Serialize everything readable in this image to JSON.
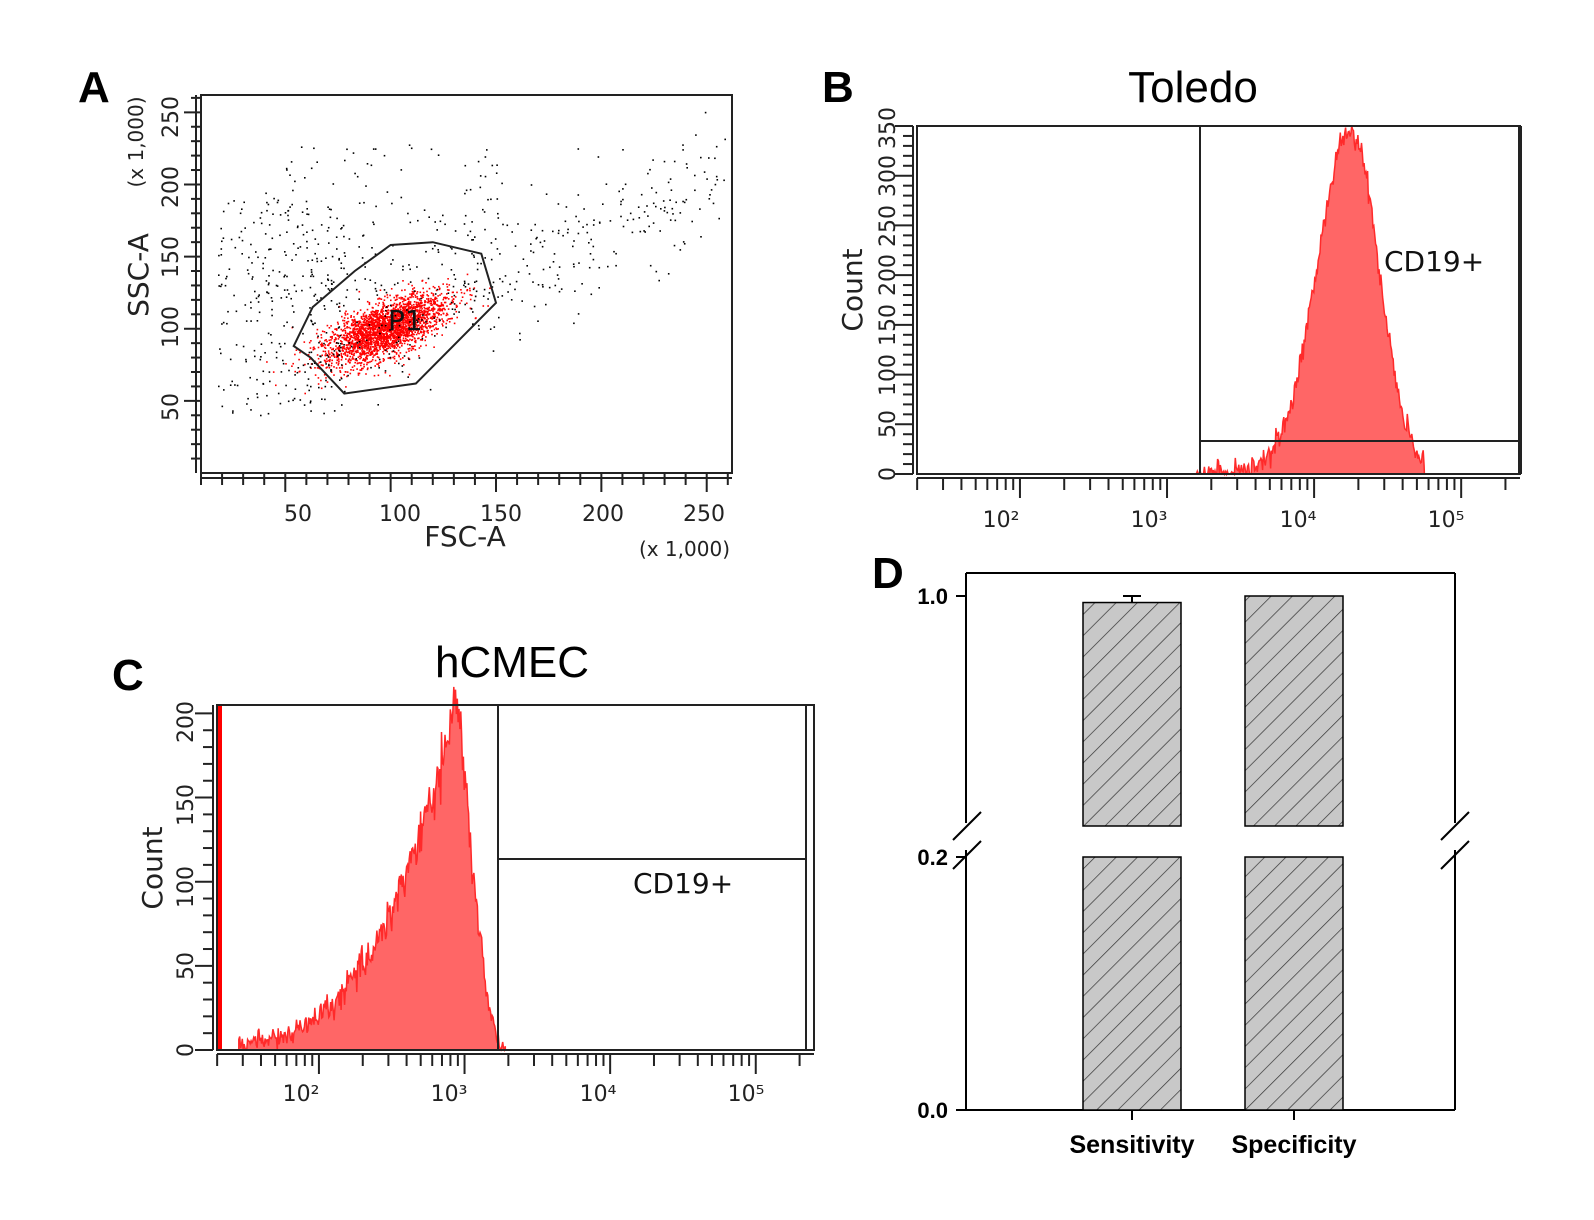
{
  "panel_labels": [
    "A",
    "B",
    "C",
    "D"
  ],
  "chart_data": [
    {
      "panel": "A",
      "type": "scatter",
      "title": "",
      "xlabel": "FSC-A",
      "ylabel": "SSC-A",
      "x_scale_note": "(x 1,000)",
      "y_scale_note": "(x 1,000)",
      "xticks": [
        "50",
        "100",
        "150",
        "200",
        "250"
      ],
      "yticks": [
        "50",
        "100",
        "150",
        "200",
        "250"
      ],
      "xlim": [
        10,
        262
      ],
      "ylim": [
        0,
        262
      ],
      "gate": {
        "label": "P1",
        "polygon": [
          [
            62,
            80
          ],
          [
            78,
            55
          ],
          [
            112,
            62
          ],
          [
            150,
            118
          ],
          [
            143,
            152
          ],
          [
            120,
            160
          ],
          [
            100,
            158
          ],
          [
            83,
            140
          ],
          [
            63,
            115
          ],
          [
            54,
            88
          ]
        ]
      },
      "populations": [
        {
          "name": "P1 gated",
          "color": "#ff0000",
          "center": [
            97,
            100
          ],
          "count": 2600
        },
        {
          "name": "ungated",
          "color": "#000000",
          "count": 750
        }
      ]
    },
    {
      "panel": "B",
      "type": "area",
      "title": "Toledo",
      "xlabel": "",
      "ylabel": "Count",
      "x_scale": "log",
      "xlim_log10": [
        1.3,
        5.4
      ],
      "ylim": [
        0,
        350
      ],
      "xticks": [
        "10^2",
        "10^3",
        "10^4",
        "10^5"
      ],
      "yticks": [
        "0",
        "50",
        "100",
        "150",
        "200",
        "250",
        "300",
        "350"
      ],
      "gate_label": "CD19+",
      "gate_x_log10": 3.3,
      "gate_y": 32,
      "histogram": {
        "color": "#ff6666",
        "peak_log10": 4.25,
        "peak_count": 345,
        "sd_left": 0.23,
        "sd_right": 0.19,
        "start_log10": 3.2,
        "end_log10": 4.75
      }
    },
    {
      "panel": "C",
      "type": "area",
      "title": "hCMEC",
      "xlabel": "",
      "ylabel": "Count",
      "x_scale": "log",
      "xlim_log10": [
        1.3,
        5.4
      ],
      "ylim": [
        0,
        205
      ],
      "xticks": [
        "10^2",
        "10^3",
        "10^4",
        "10^5"
      ],
      "yticks": [
        "0",
        "50",
        "100",
        "150",
        "200"
      ],
      "gate_label": "CD19+",
      "gate_x_log10": 3.3,
      "gate_y": 115,
      "histogram": {
        "color": "#ff6666",
        "peak_log10": 2.95,
        "peak_count": 205,
        "start_log10": 1.45,
        "end_log10": 3.28
      }
    },
    {
      "panel": "D",
      "type": "bar",
      "title": "",
      "xlabel": "",
      "ylabel": "",
      "categories": [
        "Sensitivity",
        "Specificity"
      ],
      "values": [
        0.98,
        1.0
      ],
      "errors": [
        0.02,
        0.0
      ],
      "ylim": [
        0.0,
        1.0
      ],
      "axis_break": [
        0.2,
        0.9
      ],
      "yticks": [
        "0.0",
        "0.2",
        "1.0"
      ],
      "bar_fill": "#c8c8c8",
      "bar_hatch": "diagonal"
    }
  ]
}
